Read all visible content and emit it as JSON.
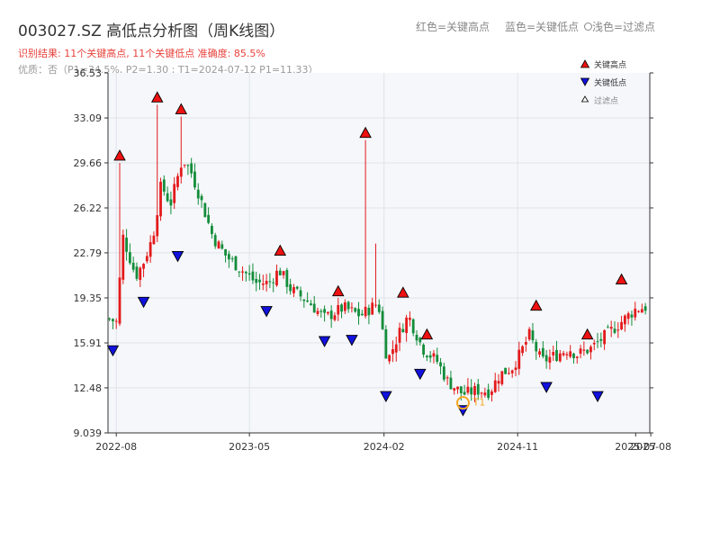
{
  "header": {
    "title": "003027.SZ 高低点分析图（周K线图）",
    "result_line": "识别结果: 11个关键高点, 11个关键低点   准确度: 85.5%",
    "quality_line": "优质：否（P1=34.5%, P2=1.30 ; T1=2024-07-12 P1=11.33）",
    "legend_high_text": "红色=关键高点",
    "legend_low_text": "蓝色=关键低点",
    "legend_filter_text": "浅色=过滤点"
  },
  "colors": {
    "up": "#e41a1c",
    "down": "#138d3a",
    "high_marker": "#ee1111",
    "low_marker": "#1111dd",
    "t1_marker": "#f5a623",
    "plot_bg": "#f5f7fa",
    "grid": "#dfe3ea"
  },
  "chart_data": {
    "type": "candlestick",
    "y_ticks": [
      "9.039",
      "12.48",
      "15.91",
      "19.35",
      "22.79",
      "26.22",
      "29.66",
      "33.09",
      "36.53"
    ],
    "ylim": [
      9.039,
      36.53
    ],
    "x_ticks": [
      {
        "label": "2022-08",
        "date": "2022-08-01"
      },
      {
        "label": "2023-05",
        "date": "2023-05-01"
      },
      {
        "label": "2024-02",
        "date": "2024-02-01"
      },
      {
        "label": "2024-11",
        "date": "2024-11-01"
      },
      {
        "label": "2025-07",
        "date": "2025-07-01"
      },
      {
        "label": "2025-08",
        "date": "2025-08-01"
      }
    ],
    "xlim": [
      "2022-07-15",
      "2025-07-30"
    ],
    "legend": {
      "position": "top-right",
      "high_label": "关键高点",
      "low_label": "关键低点",
      "filter_label": "过滤点"
    },
    "t1_label": "T1",
    "trend": [
      [
        "2022-07-15",
        17.8
      ],
      [
        "2022-08-01",
        17.5
      ],
      [
        "2022-08-15",
        24.0
      ],
      [
        "2022-09-10",
        21.0
      ],
      [
        "2022-09-25",
        22.0
      ],
      [
        "2022-10-15",
        24.0
      ],
      [
        "2022-11-01",
        28.0
      ],
      [
        "2022-11-20",
        26.5
      ],
      [
        "2022-12-15",
        30.0
      ],
      [
        "2023-01-01",
        29.0
      ],
      [
        "2023-01-20",
        27.0
      ],
      [
        "2023-02-15",
        24.0
      ],
      [
        "2023-03-15",
        22.5
      ],
      [
        "2023-04-15",
        21.5
      ],
      [
        "2023-05-15",
        20.5
      ],
      [
        "2023-06-10",
        20.5
      ],
      [
        "2023-07-01",
        21.5
      ],
      [
        "2023-07-25",
        20.0
      ],
      [
        "2023-09-01",
        19.0
      ],
      [
        "2023-10-01",
        17.8
      ],
      [
        "2023-11-10",
        18.6
      ],
      [
        "2023-12-15",
        18.0
      ],
      [
        "2024-01-20",
        19.0
      ],
      [
        "2024-02-08",
        14.5
      ],
      [
        "2024-03-01",
        16.5
      ],
      [
        "2024-03-22",
        18.0
      ],
      [
        "2024-04-20",
        15.5
      ],
      [
        "2024-05-20",
        14.5
      ],
      [
        "2024-06-10",
        13.0
      ],
      [
        "2024-07-12",
        12.0
      ],
      [
        "2024-08-10",
        12.3
      ],
      [
        "2024-09-05",
        12.2
      ],
      [
        "2024-09-25",
        13.5
      ],
      [
        "2024-10-20",
        14.0
      ],
      [
        "2024-11-05",
        15.0
      ],
      [
        "2024-11-25",
        16.5
      ],
      [
        "2024-12-20",
        14.5
      ],
      [
        "2025-01-20",
        15.0
      ],
      [
        "2025-02-15",
        15.5
      ],
      [
        "2025-03-01",
        15.0
      ],
      [
        "2025-04-01",
        15.5
      ],
      [
        "2025-05-01",
        16.5
      ],
      [
        "2025-06-01",
        17.5
      ],
      [
        "2025-07-01",
        18.5
      ],
      [
        "2025-07-30",
        18.7
      ]
    ],
    "spikes": [
      {
        "date": "2022-08-08",
        "high": 29.66
      },
      {
        "date": "2022-10-24",
        "high": 34.1
      },
      {
        "date": "2022-12-12",
        "high": 33.2
      },
      {
        "date": "2023-12-25",
        "high": 31.4
      },
      {
        "date": "2024-01-15",
        "high": 23.5
      }
    ],
    "key_highs": [
      {
        "date": "2022-08-08",
        "value": 29.66
      },
      {
        "date": "2022-10-24",
        "value": 34.1
      },
      {
        "date": "2022-12-12",
        "value": 33.2
      },
      {
        "date": "2023-07-03",
        "value": 22.4
      },
      {
        "date": "2023-10-30",
        "value": 19.3
      },
      {
        "date": "2023-12-25",
        "value": 31.4
      },
      {
        "date": "2024-03-11",
        "value": 19.2
      },
      {
        "date": "2024-04-29",
        "value": 16.0
      },
      {
        "date": "2024-12-09",
        "value": 18.2
      },
      {
        "date": "2025-03-24",
        "value": 16.0
      },
      {
        "date": "2025-06-02",
        "value": 20.2
      }
    ],
    "key_lows": [
      {
        "date": "2022-07-25",
        "value": 15.9
      },
      {
        "date": "2022-09-26",
        "value": 19.6
      },
      {
        "date": "2022-12-05",
        "value": 23.1
      },
      {
        "date": "2023-06-05",
        "value": 18.9
      },
      {
        "date": "2023-10-02",
        "value": 16.6
      },
      {
        "date": "2023-11-27",
        "value": 16.7
      },
      {
        "date": "2024-02-05",
        "value": 12.4
      },
      {
        "date": "2024-04-15",
        "value": 14.1
      },
      {
        "date": "2024-07-12",
        "value": 11.33
      },
      {
        "date": "2024-12-30",
        "value": 13.1
      },
      {
        "date": "2025-04-14",
        "value": 12.4
      }
    ],
    "t1": {
      "date": "2024-07-12",
      "value": 11.33
    }
  }
}
